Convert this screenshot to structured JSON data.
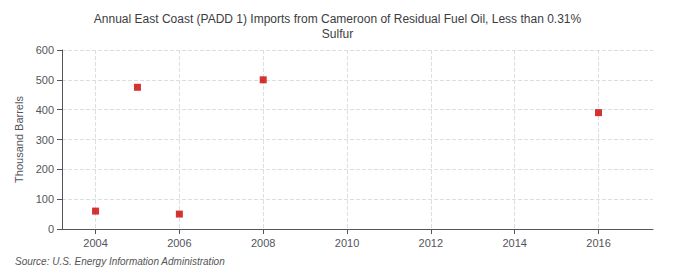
{
  "chart_data": {
    "type": "scatter",
    "title": "Annual East Coast (PADD 1) Imports from Cameroon of Residual Fuel Oil, Less than 0.31%\nSulfur",
    "ylabel": "Thousand Barrels",
    "source": "Source: U.S. Energy Information Administration",
    "x": [
      2004,
      2005,
      2006,
      2008,
      2016
    ],
    "values": [
      60,
      475,
      50,
      500,
      390
    ],
    "color": "#cc0000",
    "marker": "square",
    "xlim": [
      2003.2,
      2017.3
    ],
    "ylim": [
      0,
      600
    ],
    "xticks": [
      2004,
      2006,
      2008,
      2010,
      2012,
      2014,
      2016
    ],
    "yticks": [
      0,
      100,
      200,
      300,
      400,
      500,
      600
    ],
    "grid": true
  }
}
